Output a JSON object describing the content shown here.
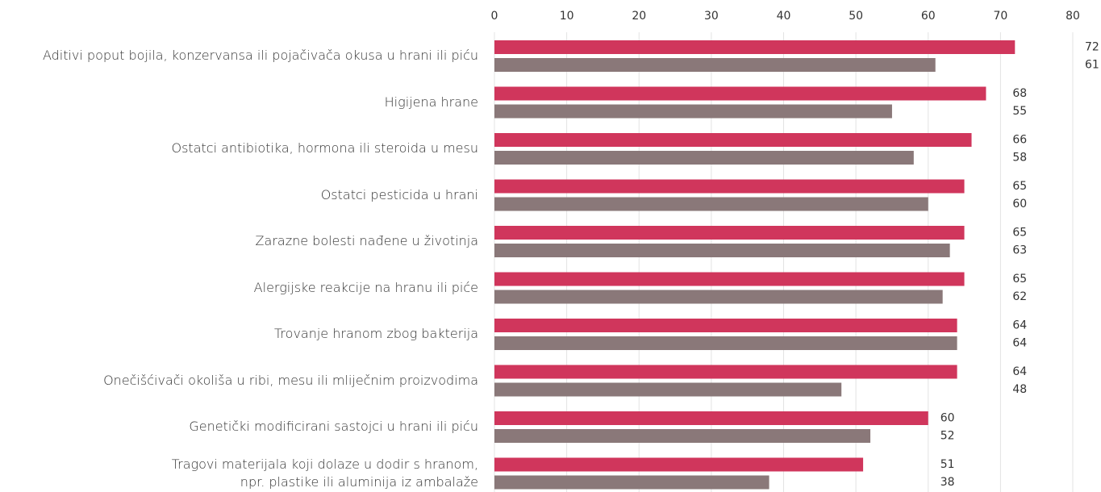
{
  "chart_data": {
    "type": "bar",
    "orientation": "horizontal",
    "categories": [
      "Aditivi poput bojila, konzervansa ili pojačivača okusa u hrani ili piću",
      "Higijena hrane",
      "Ostatci antibiotika, hormona ili steroida u mesu",
      "Ostatci pesticida u hrani",
      "Zarazne bolesti nađene u životinja",
      "Alergijske reakcije na hranu ili piće",
      "Trovanje hranom zbog bakterija",
      "Onečišćivači okoliša u ribi, mesu ili mliječnim proizvodima",
      "Genetički modificirani sastojci u hrani ili piću",
      "Tragovi materijala koji dolaze u dodir s hranom,\nnpr. plastike ili aluminija iz ambalaže"
    ],
    "series": [
      {
        "color": "#d0365c",
        "values": [
          72,
          68,
          66,
          65,
          65,
          65,
          64,
          64,
          60,
          51
        ]
      },
      {
        "color": "#8a7879",
        "values": [
          61,
          55,
          58,
          60,
          63,
          62,
          64,
          48,
          52,
          38
        ]
      }
    ],
    "xlim": [
      0,
      80
    ],
    "xticks": [
      0,
      10,
      20,
      30,
      40,
      50,
      60,
      70,
      80
    ],
    "grid": true
  }
}
